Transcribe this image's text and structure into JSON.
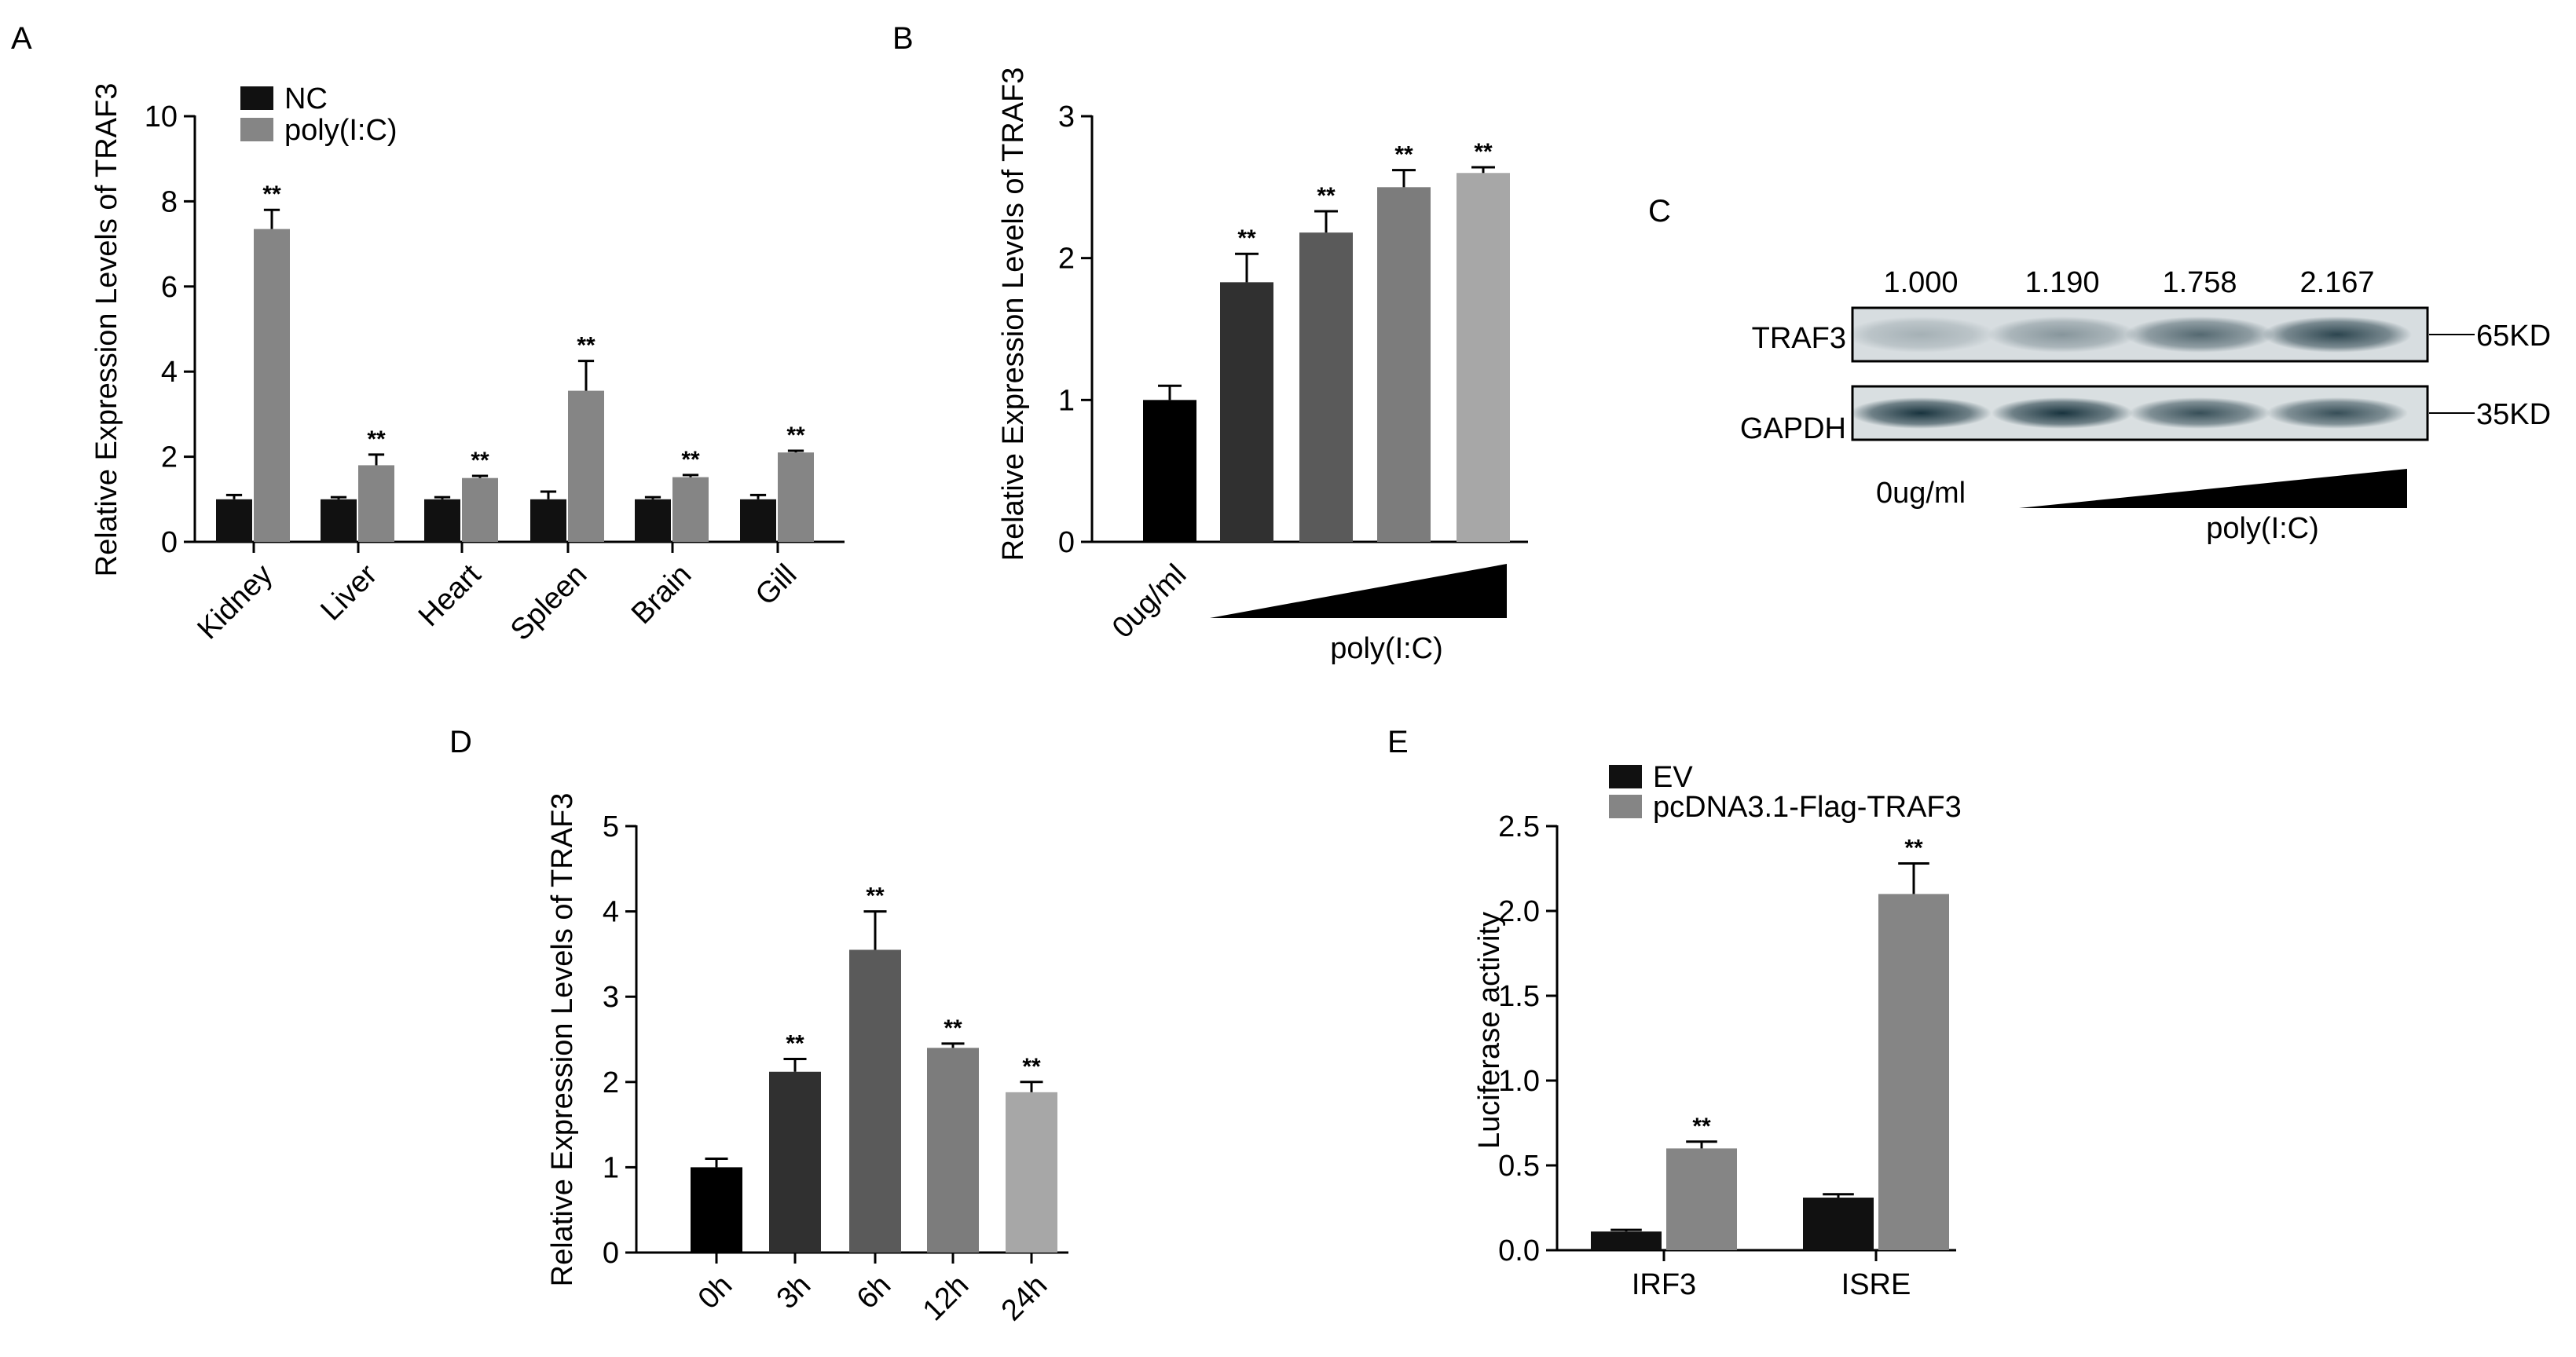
{
  "colors": {
    "black": "#000000",
    "nc": "#111111",
    "poly": "#858585",
    "d1": "#303030",
    "d2": "#5a5a5a",
    "d3": "#7c7c7c",
    "d4": "#a7a7a7",
    "triangle": "#000000",
    "blot_bg": "#d7dde0",
    "blot_band": "#0e2a35"
  },
  "chart_data": [
    {
      "panel": "A",
      "type": "bar",
      "ylabel": "Relative Expression Levels of TRAF3",
      "ylim": [
        0,
        10
      ],
      "yticks": [
        0,
        2,
        4,
        6,
        8,
        10
      ],
      "categories": [
        "Kidney",
        "Liver",
        "Heart",
        "Spleen",
        "Brain",
        "Gill"
      ],
      "series": [
        {
          "name": "NC",
          "values": [
            1.0,
            1.0,
            1.0,
            1.0,
            1.0,
            1.0
          ],
          "errors": [
            0.1,
            0.05,
            0.05,
            0.18,
            0.05,
            0.1
          ]
        },
        {
          "name": "poly(I:C)",
          "values": [
            7.35,
            1.8,
            1.5,
            3.55,
            1.52,
            2.1
          ],
          "errors": [
            0.45,
            0.25,
            0.05,
            0.7,
            0.05,
            0.04
          ]
        }
      ],
      "significance": "**",
      "legend": "top-left"
    },
    {
      "panel": "B",
      "type": "bar",
      "ylabel": "Relative Expression Levels of TRAF3",
      "ylim": [
        0,
        3
      ],
      "yticks": [
        0,
        1,
        2,
        3
      ],
      "categories": [
        "0ug/ml",
        "",
        "",
        "",
        ""
      ],
      "values": [
        1.0,
        1.83,
        2.18,
        2.5,
        2.6
      ],
      "errors": [
        0.1,
        0.2,
        0.15,
        0.12,
        0.04
      ],
      "significance": [
        "",
        "**",
        "**",
        "**",
        "**"
      ],
      "gradient_label": "poly(I:C)"
    },
    {
      "panel": "D",
      "type": "bar",
      "ylabel": "Relative Expression Levels of TRAF3",
      "ylim": [
        0,
        5
      ],
      "yticks": [
        0,
        1,
        2,
        3,
        4,
        5
      ],
      "categories": [
        "0h",
        "3h",
        "6h",
        "12h",
        "24h"
      ],
      "values": [
        1.0,
        2.12,
        3.55,
        2.4,
        1.88
      ],
      "errors": [
        0.1,
        0.15,
        0.45,
        0.05,
        0.12
      ],
      "significance": [
        "",
        "**",
        "**",
        "**",
        "**"
      ]
    },
    {
      "panel": "E",
      "type": "bar",
      "ylabel": "Luciferase activity",
      "ylim": [
        0,
        2.5
      ],
      "yticks": [
        "0.0",
        "0.5",
        "1.0",
        "1.5",
        "2.0",
        "2.5"
      ],
      "categories": [
        "IRF3",
        "ISRE"
      ],
      "series": [
        {
          "name": "EV",
          "values": [
            0.11,
            0.31
          ],
          "errors": [
            0.01,
            0.02
          ]
        },
        {
          "name": "pcDNA3.1-Flag-TRAF3",
          "values": [
            0.6,
            2.1
          ],
          "errors": [
            0.04,
            0.18
          ]
        }
      ],
      "significance": "**",
      "legend": "top-left"
    }
  ],
  "panels": {
    "A": {
      "label": "A"
    },
    "B": {
      "label": "B",
      "gradient_label": "poly(I:C)"
    },
    "C": {
      "label": "C",
      "quant": [
        "1.000",
        "1.190",
        "1.758",
        "2.167"
      ],
      "row1": "TRAF3",
      "row2": "GAPDH",
      "size1": "65KD",
      "size2": "35KD",
      "band1_intensity": [
        0.25,
        0.4,
        0.65,
        0.85
      ],
      "band2_intensity": [
        0.95,
        0.95,
        0.8,
        0.8
      ],
      "dose_zero": "0ug/ml",
      "gradient_label": "poly(I:C)"
    },
    "D": {
      "label": "D"
    },
    "E": {
      "label": "E"
    }
  }
}
